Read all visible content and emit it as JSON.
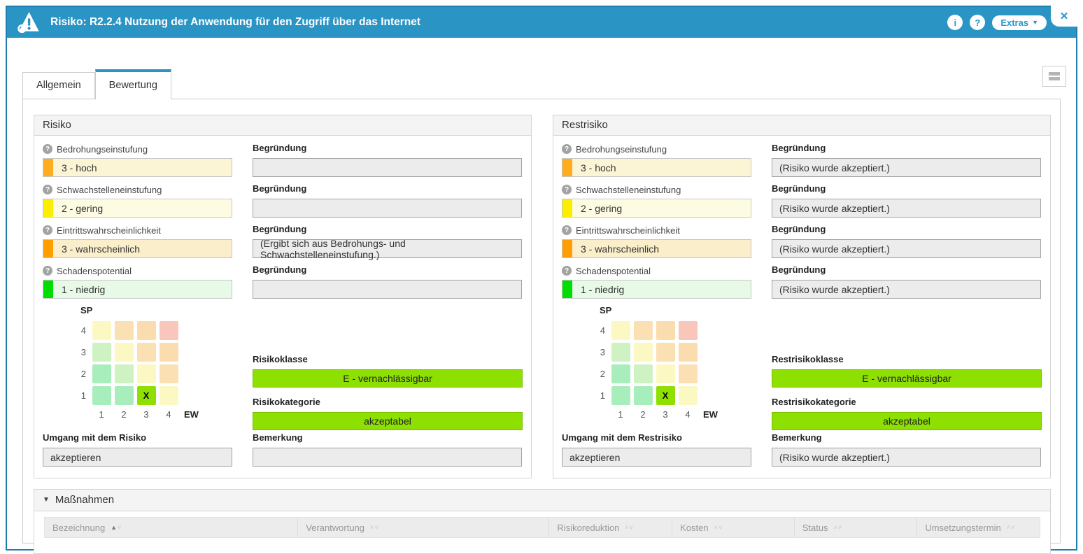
{
  "titlebar": {
    "title": "Risiko: R2.2.4 Nutzung der Anwendung für den Zugriff über das Internet",
    "info_label": "i",
    "help_label": "?",
    "extras_label": "Extras",
    "extras_caret": "▼",
    "close_label": "✕",
    "accent_color": "#2a95c5"
  },
  "tabs": [
    {
      "label": "Allgemein",
      "active": false
    },
    {
      "label": "Bewertung",
      "active": true
    }
  ],
  "panels": [
    {
      "title": "Risiko",
      "fields": [
        {
          "label": "Bedrohungseinstufung",
          "value": "3 - hoch",
          "bar": "#ffad1f",
          "bg": "#fcf5d5",
          "reason_label": "Begründung",
          "reason": ""
        },
        {
          "label": "Schwachstelleneinstufung",
          "value": "2 - gering",
          "bar": "#fdee00",
          "bg": "#fdfce2",
          "reason_label": "Begründung",
          "reason": ""
        },
        {
          "label": "Eintrittswahrscheinlichkeit",
          "value": "3 - wahrscheinlich",
          "bar": "#ff9e00",
          "bg": "#faeecb",
          "reason_label": "Begründung",
          "reason": "(Ergibt sich aus Bedrohungs- und Schwachstelleneinstufung.)"
        },
        {
          "label": "Schadenspotential",
          "value": "1 - niedrig",
          "bar": "#00dd00",
          "bg": "#e7fae7",
          "reason_label": "Begründung",
          "reason": ""
        }
      ],
      "klasse_label": "Risikoklasse",
      "klasse_value": "E - vernachlässigbar",
      "kategorie_label": "Risikokategorie",
      "kategorie_value": "akzeptabel",
      "umgang_label": "Umgang mit dem Risiko",
      "umgang_value": "akzeptieren",
      "bemerkung_label": "Bemerkung",
      "bemerkung_value": ""
    },
    {
      "title": "Restrisiko",
      "fields": [
        {
          "label": "Bedrohungseinstufung",
          "value": "3 - hoch",
          "bar": "#ffad1f",
          "bg": "#fcf5d5",
          "reason_label": "Begründung",
          "reason": "(Risiko wurde akzeptiert.)"
        },
        {
          "label": "Schwachstelleneinstufung",
          "value": "2 - gering",
          "bar": "#fdee00",
          "bg": "#fdfce2",
          "reason_label": "Begründung",
          "reason": "(Risiko wurde akzeptiert.)"
        },
        {
          "label": "Eintrittswahrscheinlichkeit",
          "value": "3 - wahrscheinlich",
          "bar": "#ff9e00",
          "bg": "#faeecb",
          "reason_label": "Begründung",
          "reason": "(Risiko wurde akzeptiert.)"
        },
        {
          "label": "Schadenspotential",
          "value": "1 - niedrig",
          "bar": "#00dd00",
          "bg": "#e7fae7",
          "reason_label": "Begründung",
          "reason": "(Risiko wurde akzeptiert.)"
        }
      ],
      "klasse_label": "Restrisikoklasse",
      "klasse_value": "E - vernachlässigbar",
      "kategorie_label": "Restrisikokategorie",
      "kategorie_value": "akzeptabel",
      "umgang_label": "Umgang mit dem Restrisiko",
      "umgang_value": "akzeptieren",
      "bemerkung_label": "Bemerkung",
      "bemerkung_value": "(Risiko wurde akzeptiert.)"
    }
  ],
  "matrix": {
    "sp_label": "SP",
    "ew_label": "EW",
    "row_labels": [
      "4",
      "3",
      "2",
      "1"
    ],
    "col_labels": [
      "1",
      "2",
      "3",
      "4"
    ],
    "cell_colors": [
      [
        "#fcf8c3",
        "#fbe0b4",
        "#fadcae",
        "#f8c6ba"
      ],
      [
        "#cff2c3",
        "#fcf8c3",
        "#fbe0b4",
        "#fadcae"
      ],
      [
        "#a8edbc",
        "#cff2c3",
        "#fcf8c3",
        "#fbe0b4"
      ],
      [
        "#a8edbc",
        "#a8edbc",
        "#8fe001",
        "#fcf8c3"
      ]
    ],
    "marker_text": "X",
    "marker_row": 3,
    "marker_col": 2,
    "marker_color": "#8fe001"
  },
  "result_colors": {
    "green_bg": "#8edf02",
    "green_border": "#79c000"
  },
  "massnahmen": {
    "collapse_icon": "▼",
    "title": "Maßnahmen",
    "columns": [
      {
        "label": "Bezeichnung",
        "sort_active": "asc"
      },
      {
        "label": "Verantwortung",
        "sort_active": "none"
      },
      {
        "label": "Risikoreduktion",
        "sort_active": "none"
      },
      {
        "label": "Kosten",
        "sort_active": "none"
      },
      {
        "label": "Status",
        "sort_active": "none"
      },
      {
        "label": "Umsetzungstermin",
        "sort_active": "none"
      }
    ]
  }
}
